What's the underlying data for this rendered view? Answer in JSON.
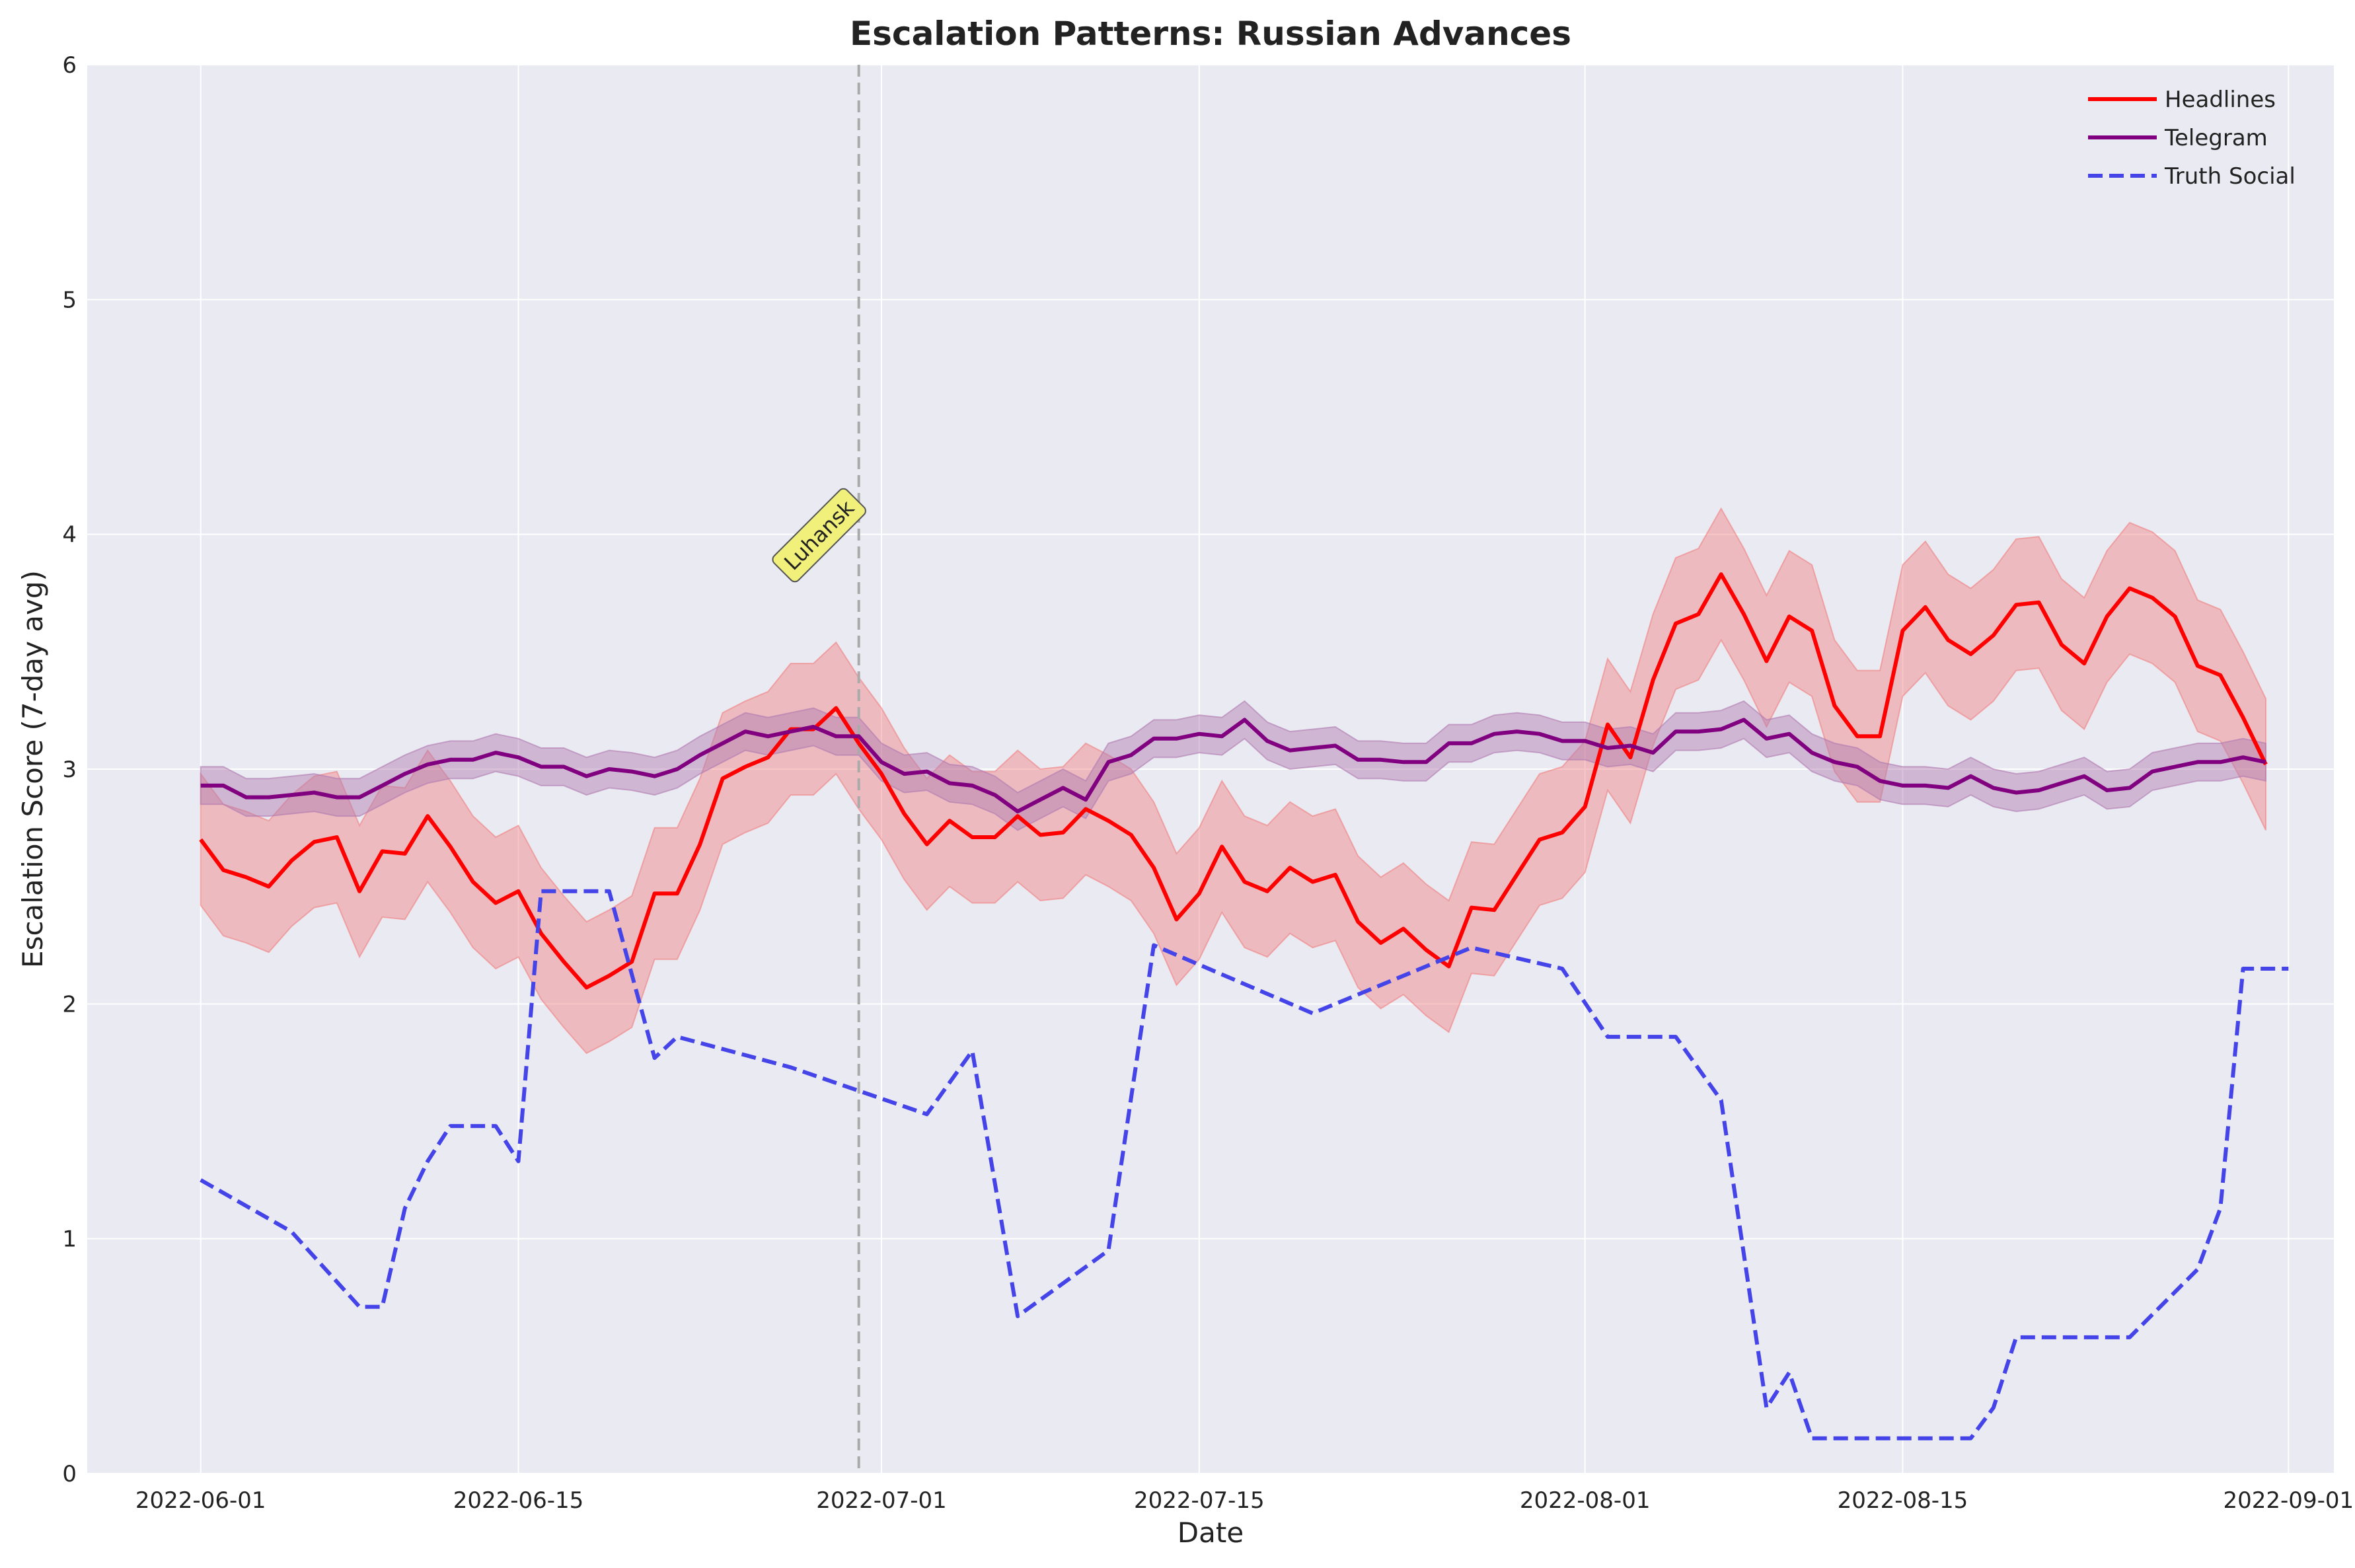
{
  "chart_data": {
    "type": "line",
    "title": "Escalation Patterns: Russian Advances",
    "xlabel": "Date",
    "ylabel": "Escalation Score (7-day avg)",
    "xlim": [
      "2022-05-27",
      "2022-09-03"
    ],
    "ylim": [
      0,
      6
    ],
    "grid": true,
    "legend_position": "top-right",
    "x_ticks": [
      "2022-06-01",
      "2022-06-15",
      "2022-07-01",
      "2022-07-15",
      "2022-08-01",
      "2022-08-15",
      "2022-09-01"
    ],
    "y_ticks": [
      0,
      1,
      2,
      3,
      4,
      5,
      6
    ],
    "annotation": {
      "label": "Luhansk",
      "date": "2022-06-30",
      "line_style": "dashed",
      "line_color": "#aaaaaa",
      "box_color": "#f0f07a"
    },
    "series": [
      {
        "name": "Headlines",
        "color": "#ff0000",
        "style": "solid",
        "band_color": "#f08080",
        "band_halfwidth": 0.28,
        "start_date": "2022-06-01",
        "step_days": 1,
        "values": [
          2.7,
          2.57,
          2.54,
          2.5,
          2.61,
          2.69,
          2.71,
          2.48,
          2.65,
          2.64,
          2.8,
          2.67,
          2.52,
          2.43,
          2.48,
          2.3,
          2.18,
          2.07,
          2.12,
          2.18,
          2.47,
          2.47,
          2.68,
          2.96,
          3.01,
          3.05,
          3.17,
          3.17,
          3.26,
          3.11,
          2.98,
          2.81,
          2.68,
          2.78,
          2.71,
          2.71,
          2.8,
          2.72,
          2.73,
          2.83,
          2.78,
          2.72,
          2.58,
          2.36,
          2.47,
          2.67,
          2.52,
          2.48,
          2.58,
          2.52,
          2.55,
          2.35,
          2.26,
          2.32,
          2.23,
          2.16,
          2.41,
          2.4,
          2.55,
          2.7,
          2.73,
          2.84,
          3.19,
          3.05,
          3.38,
          3.62,
          3.66,
          3.83,
          3.66,
          3.46,
          3.65,
          3.59,
          3.27,
          3.14,
          3.14,
          3.59,
          3.69,
          3.55,
          3.49,
          3.57,
          3.7,
          3.71,
          3.53,
          3.45,
          3.65,
          3.77,
          3.73,
          3.65,
          3.44,
          3.4,
          3.22,
          3.02
        ]
      },
      {
        "name": "Telegram",
        "color": "#800080",
        "style": "solid",
        "band_color": "#b07ab0",
        "band_halfwidth": 0.08,
        "start_date": "2022-06-01",
        "step_days": 1,
        "values": [
          2.93,
          2.93,
          2.88,
          2.88,
          2.89,
          2.9,
          2.88,
          2.88,
          2.93,
          2.98,
          3.02,
          3.04,
          3.04,
          3.07,
          3.05,
          3.01,
          3.01,
          2.97,
          3.0,
          2.99,
          2.97,
          3.0,
          3.06,
          3.11,
          3.16,
          3.14,
          3.16,
          3.18,
          3.14,
          3.14,
          3.03,
          2.98,
          2.99,
          2.94,
          2.93,
          2.89,
          2.82,
          2.87,
          2.92,
          2.87,
          3.03,
          3.06,
          3.13,
          3.13,
          3.15,
          3.14,
          3.21,
          3.12,
          3.08,
          3.09,
          3.1,
          3.04,
          3.04,
          3.03,
          3.03,
          3.11,
          3.11,
          3.15,
          3.16,
          3.15,
          3.12,
          3.12,
          3.09,
          3.1,
          3.07,
          3.16,
          3.16,
          3.17,
          3.21,
          3.13,
          3.15,
          3.07,
          3.03,
          3.01,
          2.95,
          2.93,
          2.93,
          2.92,
          2.97,
          2.92,
          2.9,
          2.91,
          2.94,
          2.97,
          2.91,
          2.92,
          2.99,
          3.01,
          3.03,
          3.03,
          3.05,
          3.03
        ]
      },
      {
        "name": "Truth Social",
        "color": "#4444e8",
        "style": "dashed",
        "points": [
          [
            "2022-06-01",
            1.25
          ],
          [
            "2022-06-05",
            1.03
          ],
          [
            "2022-06-08",
            0.71
          ],
          [
            "2022-06-09",
            0.71
          ],
          [
            "2022-06-10",
            1.13
          ],
          [
            "2022-06-11",
            1.33
          ],
          [
            "2022-06-12",
            1.48
          ],
          [
            "2022-06-14",
            1.48
          ],
          [
            "2022-06-15",
            1.33
          ],
          [
            "2022-06-16",
            2.48
          ],
          [
            "2022-06-19",
            2.48
          ],
          [
            "2022-06-21",
            1.77
          ],
          [
            "2022-06-22",
            1.86
          ],
          [
            "2022-06-27",
            1.73
          ],
          [
            "2022-07-03",
            1.53
          ],
          [
            "2022-07-05",
            1.8
          ],
          [
            "2022-07-07",
            0.67
          ],
          [
            "2022-07-11",
            0.95
          ],
          [
            "2022-07-13",
            2.25
          ],
          [
            "2022-07-20",
            1.96
          ],
          [
            "2022-07-27",
            2.24
          ],
          [
            "2022-07-31",
            2.15
          ],
          [
            "2022-08-02",
            1.86
          ],
          [
            "2022-08-05",
            1.86
          ],
          [
            "2022-08-07",
            1.59
          ],
          [
            "2022-08-09",
            0.28
          ],
          [
            "2022-08-10",
            0.43
          ],
          [
            "2022-08-11",
            0.15
          ],
          [
            "2022-08-18",
            0.15
          ],
          [
            "2022-08-19",
            0.28
          ],
          [
            "2022-08-20",
            0.58
          ],
          [
            "2022-08-25",
            0.58
          ],
          [
            "2022-08-28",
            0.87
          ],
          [
            "2022-08-29",
            1.13
          ],
          [
            "2022-08-30",
            2.15
          ],
          [
            "2022-09-01",
            2.15
          ]
        ]
      }
    ]
  }
}
